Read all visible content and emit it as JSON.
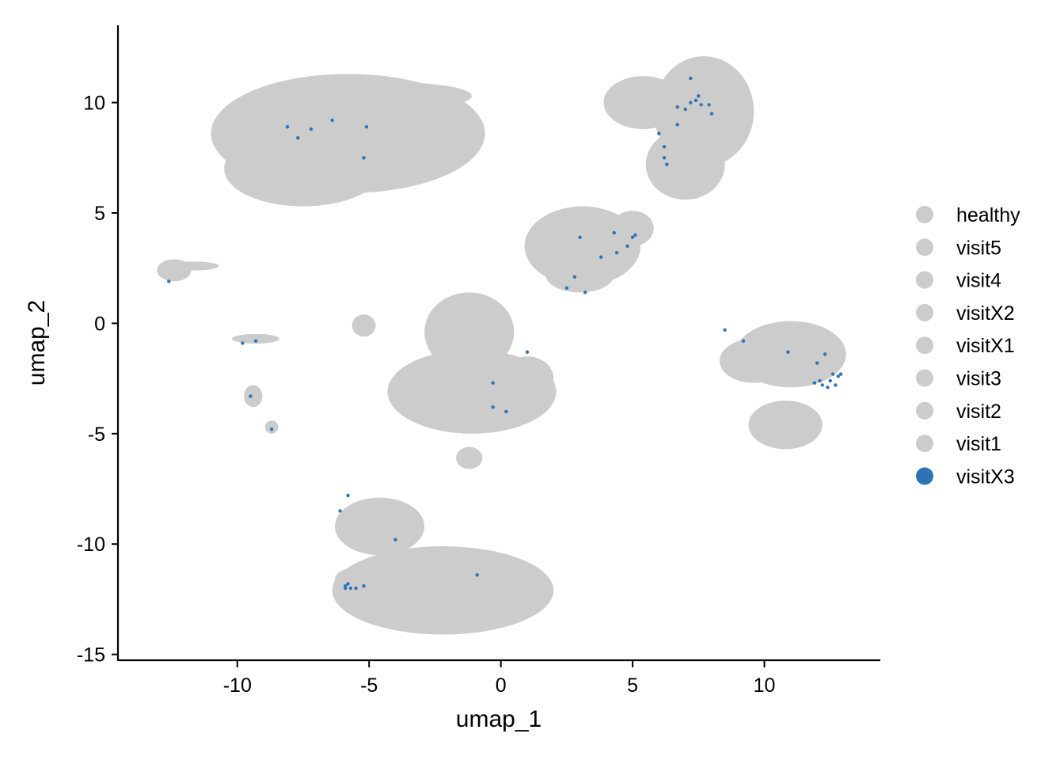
{
  "chart_data": {
    "type": "scatter",
    "title": "",
    "xlabel": "umap_1",
    "ylabel": "umap_2",
    "xlim": [
      -14.5,
      14.4
    ],
    "ylim": [
      -15.3,
      13.5
    ],
    "x_ticks": [
      -10,
      -5,
      0,
      5,
      10
    ],
    "y_ticks": [
      10,
      5,
      0,
      -5,
      -10,
      -15
    ],
    "grid": false,
    "legend_position": "right",
    "legend": [
      {
        "name": "healthy",
        "color": "#cccccc"
      },
      {
        "name": "visit5",
        "color": "#cccccc"
      },
      {
        "name": "visit4",
        "color": "#cccccc"
      },
      {
        "name": "visitX2",
        "color": "#cccccc"
      },
      {
        "name": "visitX1",
        "color": "#cccccc"
      },
      {
        "name": "visit3",
        "color": "#cccccc"
      },
      {
        "name": "visit2",
        "color": "#cccccc"
      },
      {
        "name": "visit1",
        "color": "#cccccc"
      },
      {
        "name": "visitX3",
        "color": "#2e74b5"
      }
    ],
    "highlight_color": "#2e74b5",
    "background_color": "#cccccc",
    "clusters": [
      {
        "cx": -5.8,
        "cy": 8.6,
        "rx": 5.2,
        "ry": 2.7
      },
      {
        "cx": -7.5,
        "cy": 7.0,
        "rx": 3.0,
        "ry": 1.7
      },
      {
        "cx": -3.8,
        "cy": 10.3,
        "rx": 2.7,
        "ry": 0.6
      },
      {
        "cx": -2.6,
        "cy": 7.9,
        "rx": 0.7,
        "ry": 0.25
      },
      {
        "cx": 7.7,
        "cy": 9.6,
        "rx": 1.9,
        "ry": 2.5
      },
      {
        "cx": 5.4,
        "cy": 10.0,
        "rx": 1.5,
        "ry": 1.2
      },
      {
        "cx": 7.0,
        "cy": 7.2,
        "rx": 1.5,
        "ry": 1.6
      },
      {
        "cx": 3.1,
        "cy": 3.5,
        "rx": 2.2,
        "ry": 1.8
      },
      {
        "cx": 3.0,
        "cy": 2.2,
        "rx": 1.3,
        "ry": 0.8
      },
      {
        "cx": 5.0,
        "cy": 4.3,
        "rx": 0.8,
        "ry": 0.8
      },
      {
        "cx": -12.4,
        "cy": 2.4,
        "rx": 0.65,
        "ry": 0.5
      },
      {
        "cx": -11.6,
        "cy": 2.6,
        "rx": 0.9,
        "ry": 0.2
      },
      {
        "cx": -9.3,
        "cy": -0.7,
        "rx": 0.9,
        "ry": 0.22
      },
      {
        "cx": -9.4,
        "cy": -3.3,
        "rx": 0.35,
        "ry": 0.5
      },
      {
        "cx": -8.7,
        "cy": -4.7,
        "rx": 0.25,
        "ry": 0.3
      },
      {
        "cx": -5.2,
        "cy": -0.1,
        "rx": 0.45,
        "ry": 0.5
      },
      {
        "cx": -1.2,
        "cy": -0.4,
        "rx": 1.7,
        "ry": 1.8
      },
      {
        "cx": -1.1,
        "cy": -3.1,
        "rx": 3.2,
        "ry": 1.9
      },
      {
        "cx": 1.0,
        "cy": -2.5,
        "rx": 1.0,
        "ry": 1.0
      },
      {
        "cx": -1.2,
        "cy": -6.1,
        "rx": 0.5,
        "ry": 0.5
      },
      {
        "cx": -2.2,
        "cy": -12.1,
        "rx": 4.2,
        "ry": 2.0
      },
      {
        "cx": -4.6,
        "cy": -9.2,
        "rx": 1.7,
        "ry": 1.3
      },
      {
        "cx": -5.6,
        "cy": -11.6,
        "rx": 0.7,
        "ry": 0.5
      },
      {
        "cx": 11.0,
        "cy": -1.4,
        "rx": 2.1,
        "ry": 1.5
      },
      {
        "cx": 10.8,
        "cy": -4.6,
        "rx": 1.4,
        "ry": 1.1
      },
      {
        "cx": 9.6,
        "cy": -1.7,
        "rx": 1.3,
        "ry": 1.0
      }
    ],
    "highlight_points": [
      {
        "x": -8.1,
        "y": 8.9
      },
      {
        "x": -7.7,
        "y": 8.4
      },
      {
        "x": -7.2,
        "y": 8.8
      },
      {
        "x": -6.4,
        "y": 9.2
      },
      {
        "x": -5.1,
        "y": 8.9
      },
      {
        "x": -5.2,
        "y": 7.5
      },
      {
        "x": 7.2,
        "y": 11.1
      },
      {
        "x": 7.5,
        "y": 10.3
      },
      {
        "x": 7.2,
        "y": 10.0
      },
      {
        "x": 7.4,
        "y": 10.1
      },
      {
        "x": 7.6,
        "y": 9.9
      },
      {
        "x": 7.0,
        "y": 9.7
      },
      {
        "x": 6.7,
        "y": 9.8
      },
      {
        "x": 7.9,
        "y": 9.9
      },
      {
        "x": 8.0,
        "y": 9.5
      },
      {
        "x": 6.7,
        "y": 9.0
      },
      {
        "x": 6.0,
        "y": 8.6
      },
      {
        "x": 6.2,
        "y": 8.0
      },
      {
        "x": 6.2,
        "y": 7.5
      },
      {
        "x": 6.3,
        "y": 7.2
      },
      {
        "x": 3.0,
        "y": 3.9
      },
      {
        "x": 4.3,
        "y": 4.1
      },
      {
        "x": 5.1,
        "y": 4.0
      },
      {
        "x": 5.0,
        "y": 3.9
      },
      {
        "x": 4.8,
        "y": 3.5
      },
      {
        "x": 4.4,
        "y": 3.2
      },
      {
        "x": 3.8,
        "y": 3.0
      },
      {
        "x": 2.8,
        "y": 2.1
      },
      {
        "x": 2.5,
        "y": 1.6
      },
      {
        "x": 3.2,
        "y": 1.4
      },
      {
        "x": -12.6,
        "y": 1.9
      },
      {
        "x": -9.8,
        "y": -0.9
      },
      {
        "x": -9.3,
        "y": -0.8
      },
      {
        "x": -9.5,
        "y": -3.3
      },
      {
        "x": -8.7,
        "y": -4.8
      },
      {
        "x": 1.0,
        "y": -1.3
      },
      {
        "x": -0.3,
        "y": -2.7
      },
      {
        "x": -0.3,
        "y": -3.8
      },
      {
        "x": 0.2,
        "y": -4.0
      },
      {
        "x": -5.8,
        "y": -7.8
      },
      {
        "x": -6.1,
        "y": -8.5
      },
      {
        "x": -4.0,
        "y": -9.8
      },
      {
        "x": -0.9,
        "y": -11.4
      },
      {
        "x": -5.9,
        "y": -11.9
      },
      {
        "x": -5.8,
        "y": -11.8
      },
      {
        "x": -5.7,
        "y": -12.0
      },
      {
        "x": -5.9,
        "y": -12.0
      },
      {
        "x": -5.5,
        "y": -12.0
      },
      {
        "x": -5.2,
        "y": -11.9
      },
      {
        "x": 8.5,
        "y": -0.3
      },
      {
        "x": 9.2,
        "y": -0.8
      },
      {
        "x": 10.9,
        "y": -1.3
      },
      {
        "x": 12.3,
        "y": -1.4
      },
      {
        "x": 12.0,
        "y": -1.8
      },
      {
        "x": 12.1,
        "y": -2.6
      },
      {
        "x": 11.9,
        "y": -2.7
      },
      {
        "x": 12.2,
        "y": -2.8
      },
      {
        "x": 12.5,
        "y": -2.6
      },
      {
        "x": 12.6,
        "y": -2.3
      },
      {
        "x": 12.8,
        "y": -2.4
      },
      {
        "x": 12.9,
        "y": -2.3
      },
      {
        "x": 12.4,
        "y": -2.9
      },
      {
        "x": 12.7,
        "y": -2.8
      }
    ]
  }
}
